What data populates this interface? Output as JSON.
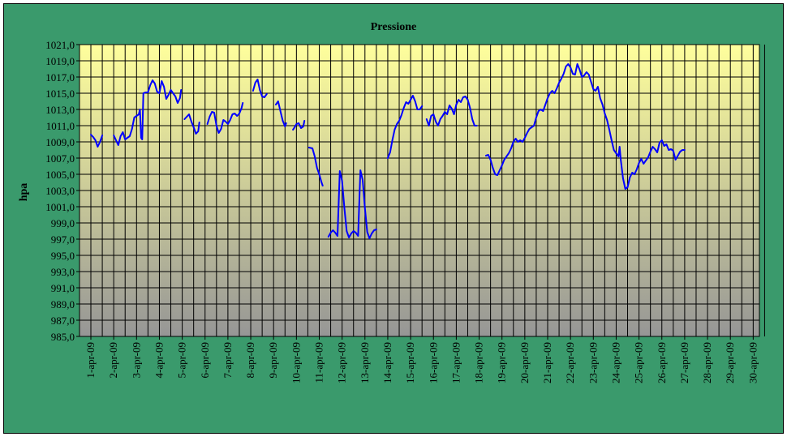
{
  "colors": {
    "frame_background": "#3a9a6c",
    "plot_gradient_top": "#ffff9c",
    "plot_gradient_bottom": "#969696",
    "series_line": "#0000ff",
    "grid": "#000000"
  },
  "chart_data": {
    "type": "line",
    "title": "Pressione",
    "ylabel": "hpa",
    "xlabel": "",
    "ylim": [
      985,
      1021
    ],
    "y_ticks": [
      1021.0,
      1019.0,
      1017.0,
      1015.0,
      1013.0,
      1011.0,
      1009.0,
      1007.0,
      1005.0,
      1003.0,
      1001.0,
      999.0,
      997.0,
      995.0,
      993.0,
      991.0,
      989.0,
      987.0,
      985.0
    ],
    "y_tick_labels": [
      "1021,0",
      "1019,0",
      "1017,0",
      "1015,0",
      "1013,0",
      "1011,0",
      "1009,0",
      "1007,0",
      "1005,0",
      "1003,0",
      "1001,0",
      "999,0",
      "997,0",
      "995,0",
      "993,0",
      "991,0",
      "989,0",
      "987,0",
      "985,0"
    ],
    "x_range_days": [
      1,
      30
    ],
    "categories": [
      "1-apr-09",
      "2-apr-09",
      "3-apr-09",
      "4-apr-09",
      "5-apr-09",
      "6-apr-09",
      "7-apr-09",
      "8-apr-09",
      "9-apr-09",
      "10-apr-09",
      "11-apr-09",
      "12-apr-09",
      "13-apr-09",
      "14-apr-09",
      "15-apr-09",
      "16-apr-09",
      "17-apr-09",
      "18-apr-09",
      "19-apr-09",
      "20-apr-09",
      "21-apr-09",
      "22-apr-09",
      "23-apr-09",
      "24-apr-09",
      "25-apr-09",
      "26-apr-09",
      "27-apr-09",
      "28-apr-09",
      "29-apr-09",
      "30-apr-09"
    ],
    "grid": true,
    "legend": "none",
    "series": [
      {
        "segments": [
          [
            [
              1.0,
              1009.9
            ],
            [
              1.1,
              1009.6
            ],
            [
              1.2,
              1009.2
            ],
            [
              1.3,
              1008.4
            ],
            [
              1.4,
              1009.0
            ],
            [
              1.5,
              1009.8
            ]
          ],
          [
            [
              2.0,
              1009.8
            ],
            [
              2.1,
              1009.2
            ],
            [
              2.2,
              1008.6
            ],
            [
              2.3,
              1009.7
            ],
            [
              2.4,
              1010.2
            ],
            [
              2.5,
              1009.3
            ],
            [
              2.6,
              1009.5
            ],
            [
              2.7,
              1009.7
            ],
            [
              2.8,
              1010.6
            ],
            [
              2.9,
              1012.0
            ],
            [
              3.0,
              1012.2
            ],
            [
              3.1,
              1012.4
            ],
            [
              3.15,
              1013.0
            ],
            [
              3.2,
              1009.5
            ],
            [
              3.25,
              1009.3
            ],
            [
              3.3,
              1015.0
            ],
            [
              3.4,
              1015.1
            ],
            [
              3.5,
              1015.1
            ],
            [
              3.6,
              1016.0
            ],
            [
              3.7,
              1016.6
            ],
            [
              3.8,
              1016.2
            ],
            [
              3.9,
              1015.2
            ],
            [
              4.0,
              1015.0
            ],
            [
              4.1,
              1016.5
            ],
            [
              4.2,
              1015.8
            ],
            [
              4.3,
              1014.3
            ],
            [
              4.4,
              1014.8
            ],
            [
              4.5,
              1015.4
            ],
            [
              4.6,
              1015.0
            ],
            [
              4.7,
              1014.6
            ],
            [
              4.8,
              1013.8
            ],
            [
              4.9,
              1014.4
            ],
            [
              4.95,
              1015.4
            ]
          ],
          [
            [
              5.1,
              1011.8
            ],
            [
              5.2,
              1012.1
            ],
            [
              5.3,
              1012.4
            ],
            [
              5.4,
              1011.5
            ],
            [
              5.5,
              1010.8
            ],
            [
              5.6,
              1010.0
            ],
            [
              5.7,
              1010.3
            ],
            [
              5.75,
              1011.4
            ]
          ],
          [
            [
              6.1,
              1011.2
            ],
            [
              6.2,
              1012.1
            ],
            [
              6.3,
              1012.7
            ],
            [
              6.4,
              1012.6
            ],
            [
              6.5,
              1011.0
            ],
            [
              6.6,
              1010.1
            ],
            [
              6.7,
              1010.6
            ],
            [
              6.8,
              1011.7
            ],
            [
              6.9,
              1011.5
            ],
            [
              7.0,
              1011.2
            ],
            [
              7.1,
              1011.7
            ],
            [
              7.2,
              1012.4
            ],
            [
              7.3,
              1012.5
            ],
            [
              7.4,
              1012.2
            ],
            [
              7.5,
              1012.5
            ],
            [
              7.6,
              1013.2
            ],
            [
              7.65,
              1013.8
            ]
          ],
          [
            [
              8.1,
              1015.3
            ],
            [
              8.2,
              1016.3
            ],
            [
              8.3,
              1016.7
            ],
            [
              8.4,
              1015.4
            ],
            [
              8.5,
              1014.6
            ],
            [
              8.6,
              1014.5
            ],
            [
              8.7,
              1014.9
            ]
          ],
          [
            [
              9.1,
              1013.6
            ],
            [
              9.2,
              1014.0
            ],
            [
              9.3,
              1012.8
            ],
            [
              9.4,
              1011.6
            ],
            [
              9.5,
              1010.9
            ],
            [
              9.55,
              1011.3
            ]
          ],
          [
            [
              9.85,
              1010.5
            ],
            [
              9.9,
              1010.7
            ],
            [
              10.0,
              1011.2
            ],
            [
              10.1,
              1011.3
            ],
            [
              10.2,
              1010.7
            ],
            [
              10.3,
              1010.9
            ],
            [
              10.35,
              1011.6
            ]
          ],
          [
            [
              10.55,
              1008.3
            ],
            [
              10.7,
              1008.2
            ],
            [
              10.8,
              1007.2
            ],
            [
              10.9,
              1005.8
            ],
            [
              11.0,
              1005.0
            ],
            [
              11.1,
              1004.0
            ],
            [
              11.15,
              1003.6
            ]
          ],
          [
            [
              11.4,
              997.3
            ],
            [
              11.5,
              997.8
            ],
            [
              11.6,
              998.1
            ],
            [
              11.7,
              997.8
            ],
            [
              11.8,
              997.4
            ],
            [
              11.9,
              1005.4
            ],
            [
              12.0,
              1004.2
            ],
            [
              12.1,
              1000.8
            ],
            [
              12.2,
              998.0
            ],
            [
              12.3,
              997.2
            ],
            [
              12.4,
              997.7
            ],
            [
              12.5,
              998.0
            ],
            [
              12.6,
              997.8
            ],
            [
              12.7,
              997.4
            ],
            [
              12.8,
              1005.5
            ],
            [
              12.9,
              1004.3
            ],
            [
              13.0,
              1000.8
            ],
            [
              13.1,
              997.9
            ],
            [
              13.2,
              997.1
            ],
            [
              13.3,
              997.7
            ],
            [
              13.4,
              998.1
            ],
            [
              13.5,
              998.2
            ]
          ],
          [
            [
              14.0,
              1007.0
            ],
            [
              14.1,
              1007.7
            ],
            [
              14.2,
              1009.2
            ],
            [
              14.3,
              1010.5
            ],
            [
              14.4,
              1011.2
            ],
            [
              14.5,
              1011.6
            ],
            [
              14.6,
              1012.3
            ],
            [
              14.7,
              1013.2
            ],
            [
              14.8,
              1013.9
            ],
            [
              14.9,
              1013.7
            ],
            [
              15.0,
              1014.2
            ],
            [
              15.1,
              1014.7
            ],
            [
              15.2,
              1014.0
            ],
            [
              15.3,
              1013.0
            ],
            [
              15.4,
              1013.0
            ],
            [
              15.5,
              1013.4
            ]
          ],
          [
            [
              15.7,
              1011.8
            ],
            [
              15.8,
              1011.0
            ],
            [
              15.9,
              1012.2
            ],
            [
              16.0,
              1012.4
            ],
            [
              16.1,
              1011.5
            ],
            [
              16.2,
              1011.0
            ],
            [
              16.3,
              1011.8
            ],
            [
              16.4,
              1012.2
            ],
            [
              16.5,
              1012.7
            ],
            [
              16.6,
              1012.4
            ],
            [
              16.7,
              1013.5
            ],
            [
              16.8,
              1013.1
            ],
            [
              16.9,
              1012.4
            ],
            [
              17.0,
              1013.6
            ],
            [
              17.1,
              1014.2
            ],
            [
              17.2,
              1013.9
            ],
            [
              17.3,
              1014.5
            ],
            [
              17.4,
              1014.6
            ],
            [
              17.5,
              1014.2
            ],
            [
              17.6,
              1013.2
            ],
            [
              17.7,
              1011.8
            ],
            [
              17.8,
              1011.0
            ],
            [
              17.9,
              1011.0
            ]
          ],
          [
            [
              18.3,
              1007.3
            ],
            [
              18.4,
              1007.4
            ],
            [
              18.5,
              1006.8
            ],
            [
              18.6,
              1005.8
            ],
            [
              18.7,
              1005.0
            ],
            [
              18.8,
              1004.9
            ],
            [
              18.9,
              1005.5
            ],
            [
              19.0,
              1006.1
            ],
            [
              19.1,
              1006.8
            ],
            [
              19.2,
              1007.2
            ],
            [
              19.3,
              1007.6
            ],
            [
              19.4,
              1008.2
            ],
            [
              19.5,
              1009.0
            ],
            [
              19.6,
              1009.4
            ],
            [
              19.7,
              1009.0
            ],
            [
              19.8,
              1009.2
            ],
            [
              19.9,
              1009.0
            ],
            [
              20.0,
              1009.5
            ],
            [
              20.1,
              1010.1
            ],
            [
              20.2,
              1010.6
            ],
            [
              20.3,
              1010.8
            ],
            [
              20.4,
              1011.0
            ],
            [
              20.5,
              1012.0
            ],
            [
              20.6,
              1012.8
            ],
            [
              20.7,
              1013.0
            ],
            [
              20.8,
              1012.8
            ],
            [
              20.9,
              1013.6
            ],
            [
              21.0,
              1014.4
            ],
            [
              21.1,
              1015.0
            ],
            [
              21.2,
              1015.3
            ],
            [
              21.3,
              1015.0
            ],
            [
              21.4,
              1015.6
            ],
            [
              21.5,
              1016.3
            ],
            [
              21.6,
              1016.8
            ],
            [
              21.7,
              1017.4
            ],
            [
              21.8,
              1018.3
            ],
            [
              21.9,
              1018.6
            ],
            [
              22.0,
              1018.2
            ],
            [
              22.1,
              1017.4
            ],
            [
              22.2,
              1017.3
            ],
            [
              22.3,
              1018.6
            ],
            [
              22.4,
              1017.9
            ],
            [
              22.5,
              1017.0
            ],
            [
              22.6,
              1017.2
            ],
            [
              22.7,
              1017.6
            ],
            [
              22.8,
              1017.3
            ],
            [
              22.9,
              1016.4
            ],
            [
              23.0,
              1015.5
            ],
            [
              23.1,
              1015.3
            ],
            [
              23.2,
              1015.8
            ],
            [
              23.3,
              1014.4
            ],
            [
              23.4,
              1013.6
            ],
            [
              23.5,
              1012.5
            ],
            [
              23.6,
              1011.7
            ],
            [
              23.7,
              1010.5
            ],
            [
              23.8,
              1009.2
            ],
            [
              23.9,
              1008.0
            ],
            [
              24.0,
              1007.6
            ],
            [
              24.1,
              1007.2
            ],
            [
              24.15,
              1008.4
            ],
            [
              24.2,
              1006.8
            ],
            [
              24.3,
              1004.5
            ],
            [
              24.4,
              1003.2
            ],
            [
              24.5,
              1003.4
            ],
            [
              24.6,
              1004.6
            ],
            [
              24.7,
              1005.2
            ],
            [
              24.8,
              1005.0
            ],
            [
              24.9,
              1005.6
            ],
            [
              25.0,
              1006.4
            ],
            [
              25.1,
              1006.9
            ],
            [
              25.2,
              1006.3
            ],
            [
              25.3,
              1006.7
            ],
            [
              25.4,
              1007.1
            ],
            [
              25.5,
              1007.8
            ],
            [
              25.6,
              1008.4
            ],
            [
              25.7,
              1008.1
            ],
            [
              25.8,
              1007.7
            ],
            [
              25.9,
              1008.9
            ],
            [
              26.0,
              1009.2
            ],
            [
              26.1,
              1008.5
            ],
            [
              26.2,
              1008.7
            ],
            [
              26.3,
              1008.0
            ],
            [
              26.4,
              1008.1
            ],
            [
              26.5,
              1007.9
            ],
            [
              26.6,
              1006.8
            ],
            [
              26.7,
              1007.3
            ],
            [
              26.8,
              1007.8
            ],
            [
              26.9,
              1008.0
            ],
            [
              27.0,
              1008.0
            ]
          ]
        ]
      }
    ]
  }
}
